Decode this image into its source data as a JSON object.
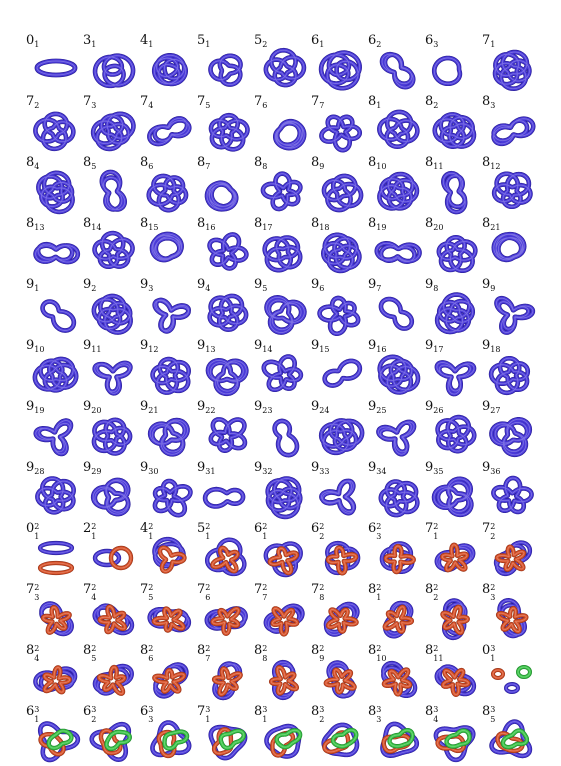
{
  "colors": {
    "blue": "#4a3ad8",
    "blue_dark": "#2a1f9a",
    "red": "#d8522a",
    "red_dark": "#9a3418",
    "green": "#3cc44a",
    "green_dark": "#1f8a2c"
  },
  "rows": [
    [
      {
        "n": "0",
        "s": "1"
      },
      {
        "n": "3",
        "s": "1"
      },
      {
        "n": "4",
        "s": "1"
      },
      {
        "n": "5",
        "s": "1"
      },
      {
        "n": "5",
        "s": "2"
      },
      {
        "n": "6",
        "s": "1"
      },
      {
        "n": "6",
        "s": "2"
      },
      {
        "n": "6",
        "s": "3"
      },
      {
        "n": "7",
        "s": "1"
      }
    ],
    [
      {
        "n": "7",
        "s": "2"
      },
      {
        "n": "7",
        "s": "3"
      },
      {
        "n": "7",
        "s": "4"
      },
      {
        "n": "7",
        "s": "5"
      },
      {
        "n": "7",
        "s": "6"
      },
      {
        "n": "7",
        "s": "7"
      },
      {
        "n": "8",
        "s": "1"
      },
      {
        "n": "8",
        "s": "2"
      },
      {
        "n": "8",
        "s": "3"
      }
    ],
    [
      {
        "n": "8",
        "s": "4"
      },
      {
        "n": "8",
        "s": "5"
      },
      {
        "n": "8",
        "s": "6"
      },
      {
        "n": "8",
        "s": "7"
      },
      {
        "n": "8",
        "s": "8"
      },
      {
        "n": "8",
        "s": "9"
      },
      {
        "n": "8",
        "s": "10"
      },
      {
        "n": "8",
        "s": "11"
      },
      {
        "n": "8",
        "s": "12"
      }
    ],
    [
      {
        "n": "8",
        "s": "13"
      },
      {
        "n": "8",
        "s": "14"
      },
      {
        "n": "8",
        "s": "15"
      },
      {
        "n": "8",
        "s": "16"
      },
      {
        "n": "8",
        "s": "17"
      },
      {
        "n": "8",
        "s": "18"
      },
      {
        "n": "8",
        "s": "19"
      },
      {
        "n": "8",
        "s": "20"
      },
      {
        "n": "8",
        "s": "21"
      }
    ],
    [
      {
        "n": "9",
        "s": "1"
      },
      {
        "n": "9",
        "s": "2"
      },
      {
        "n": "9",
        "s": "3"
      },
      {
        "n": "9",
        "s": "4"
      },
      {
        "n": "9",
        "s": "5"
      },
      {
        "n": "9",
        "s": "6"
      },
      {
        "n": "9",
        "s": "7"
      },
      {
        "n": "9",
        "s": "8"
      },
      {
        "n": "9",
        "s": "9"
      }
    ],
    [
      {
        "n": "9",
        "s": "10"
      },
      {
        "n": "9",
        "s": "11"
      },
      {
        "n": "9",
        "s": "12"
      },
      {
        "n": "9",
        "s": "13"
      },
      {
        "n": "9",
        "s": "14"
      },
      {
        "n": "9",
        "s": "15"
      },
      {
        "n": "9",
        "s": "16"
      },
      {
        "n": "9",
        "s": "17"
      },
      {
        "n": "9",
        "s": "18"
      }
    ],
    [
      {
        "n": "9",
        "s": "19"
      },
      {
        "n": "9",
        "s": "20"
      },
      {
        "n": "9",
        "s": "21"
      },
      {
        "n": "9",
        "s": "22"
      },
      {
        "n": "9",
        "s": "23"
      },
      {
        "n": "9",
        "s": "24"
      },
      {
        "n": "9",
        "s": "25"
      },
      {
        "n": "9",
        "s": "26"
      },
      {
        "n": "9",
        "s": "27"
      }
    ],
    [
      {
        "n": "9",
        "s": "28"
      },
      {
        "n": "9",
        "s": "29"
      },
      {
        "n": "9",
        "s": "30"
      },
      {
        "n": "9",
        "s": "31"
      },
      {
        "n": "9",
        "s": "32"
      },
      {
        "n": "9",
        "s": "33"
      },
      {
        "n": "9",
        "s": "34"
      },
      {
        "n": "9",
        "s": "35"
      },
      {
        "n": "9",
        "s": "36"
      }
    ],
    [
      {
        "n": "0",
        "p": "2",
        "s": "1"
      },
      {
        "n": "2",
        "p": "2",
        "s": "1"
      },
      {
        "n": "4",
        "p": "2",
        "s": "1"
      },
      {
        "n": "5",
        "p": "2",
        "s": "1"
      },
      {
        "n": "6",
        "p": "2",
        "s": "1"
      },
      {
        "n": "6",
        "p": "2",
        "s": "2"
      },
      {
        "n": "6",
        "p": "2",
        "s": "3"
      },
      {
        "n": "7",
        "p": "2",
        "s": "1"
      },
      {
        "n": "7",
        "p": "2",
        "s": "2"
      }
    ],
    [
      {
        "n": "7",
        "p": "2",
        "s": "3"
      },
      {
        "n": "7",
        "p": "2",
        "s": "4"
      },
      {
        "n": "7",
        "p": "2",
        "s": "5"
      },
      {
        "n": "7",
        "p": "2",
        "s": "6"
      },
      {
        "n": "7",
        "p": "2",
        "s": "7"
      },
      {
        "n": "7",
        "p": "2",
        "s": "8"
      },
      {
        "n": "8",
        "p": "2",
        "s": "1"
      },
      {
        "n": "8",
        "p": "2",
        "s": "2"
      },
      {
        "n": "8",
        "p": "2",
        "s": "3"
      }
    ],
    [
      {
        "n": "8",
        "p": "2",
        "s": "4"
      },
      {
        "n": "8",
        "p": "2",
        "s": "5"
      },
      {
        "n": "8",
        "p": "2",
        "s": "6"
      },
      {
        "n": "8",
        "p": "2",
        "s": "7"
      },
      {
        "n": "8",
        "p": "2",
        "s": "8"
      },
      {
        "n": "8",
        "p": "2",
        "s": "9"
      },
      {
        "n": "8",
        "p": "2",
        "s": "10"
      },
      {
        "n": "8",
        "p": "2",
        "s": "11"
      },
      {
        "n": "0",
        "p": "3",
        "s": "1"
      }
    ],
    [
      {
        "n": "6",
        "p": "3",
        "s": "1"
      },
      {
        "n": "6",
        "p": "3",
        "s": "2"
      },
      {
        "n": "6",
        "p": "3",
        "s": "3"
      },
      {
        "n": "7",
        "p": "3",
        "s": "1"
      },
      {
        "n": "8",
        "p": "3",
        "s": "1"
      },
      {
        "n": "8",
        "p": "3",
        "s": "2"
      },
      {
        "n": "8",
        "p": "3",
        "s": "3"
      },
      {
        "n": "8",
        "p": "3",
        "s": "4"
      },
      {
        "n": "8",
        "p": "3",
        "s": "5"
      }
    ]
  ]
}
